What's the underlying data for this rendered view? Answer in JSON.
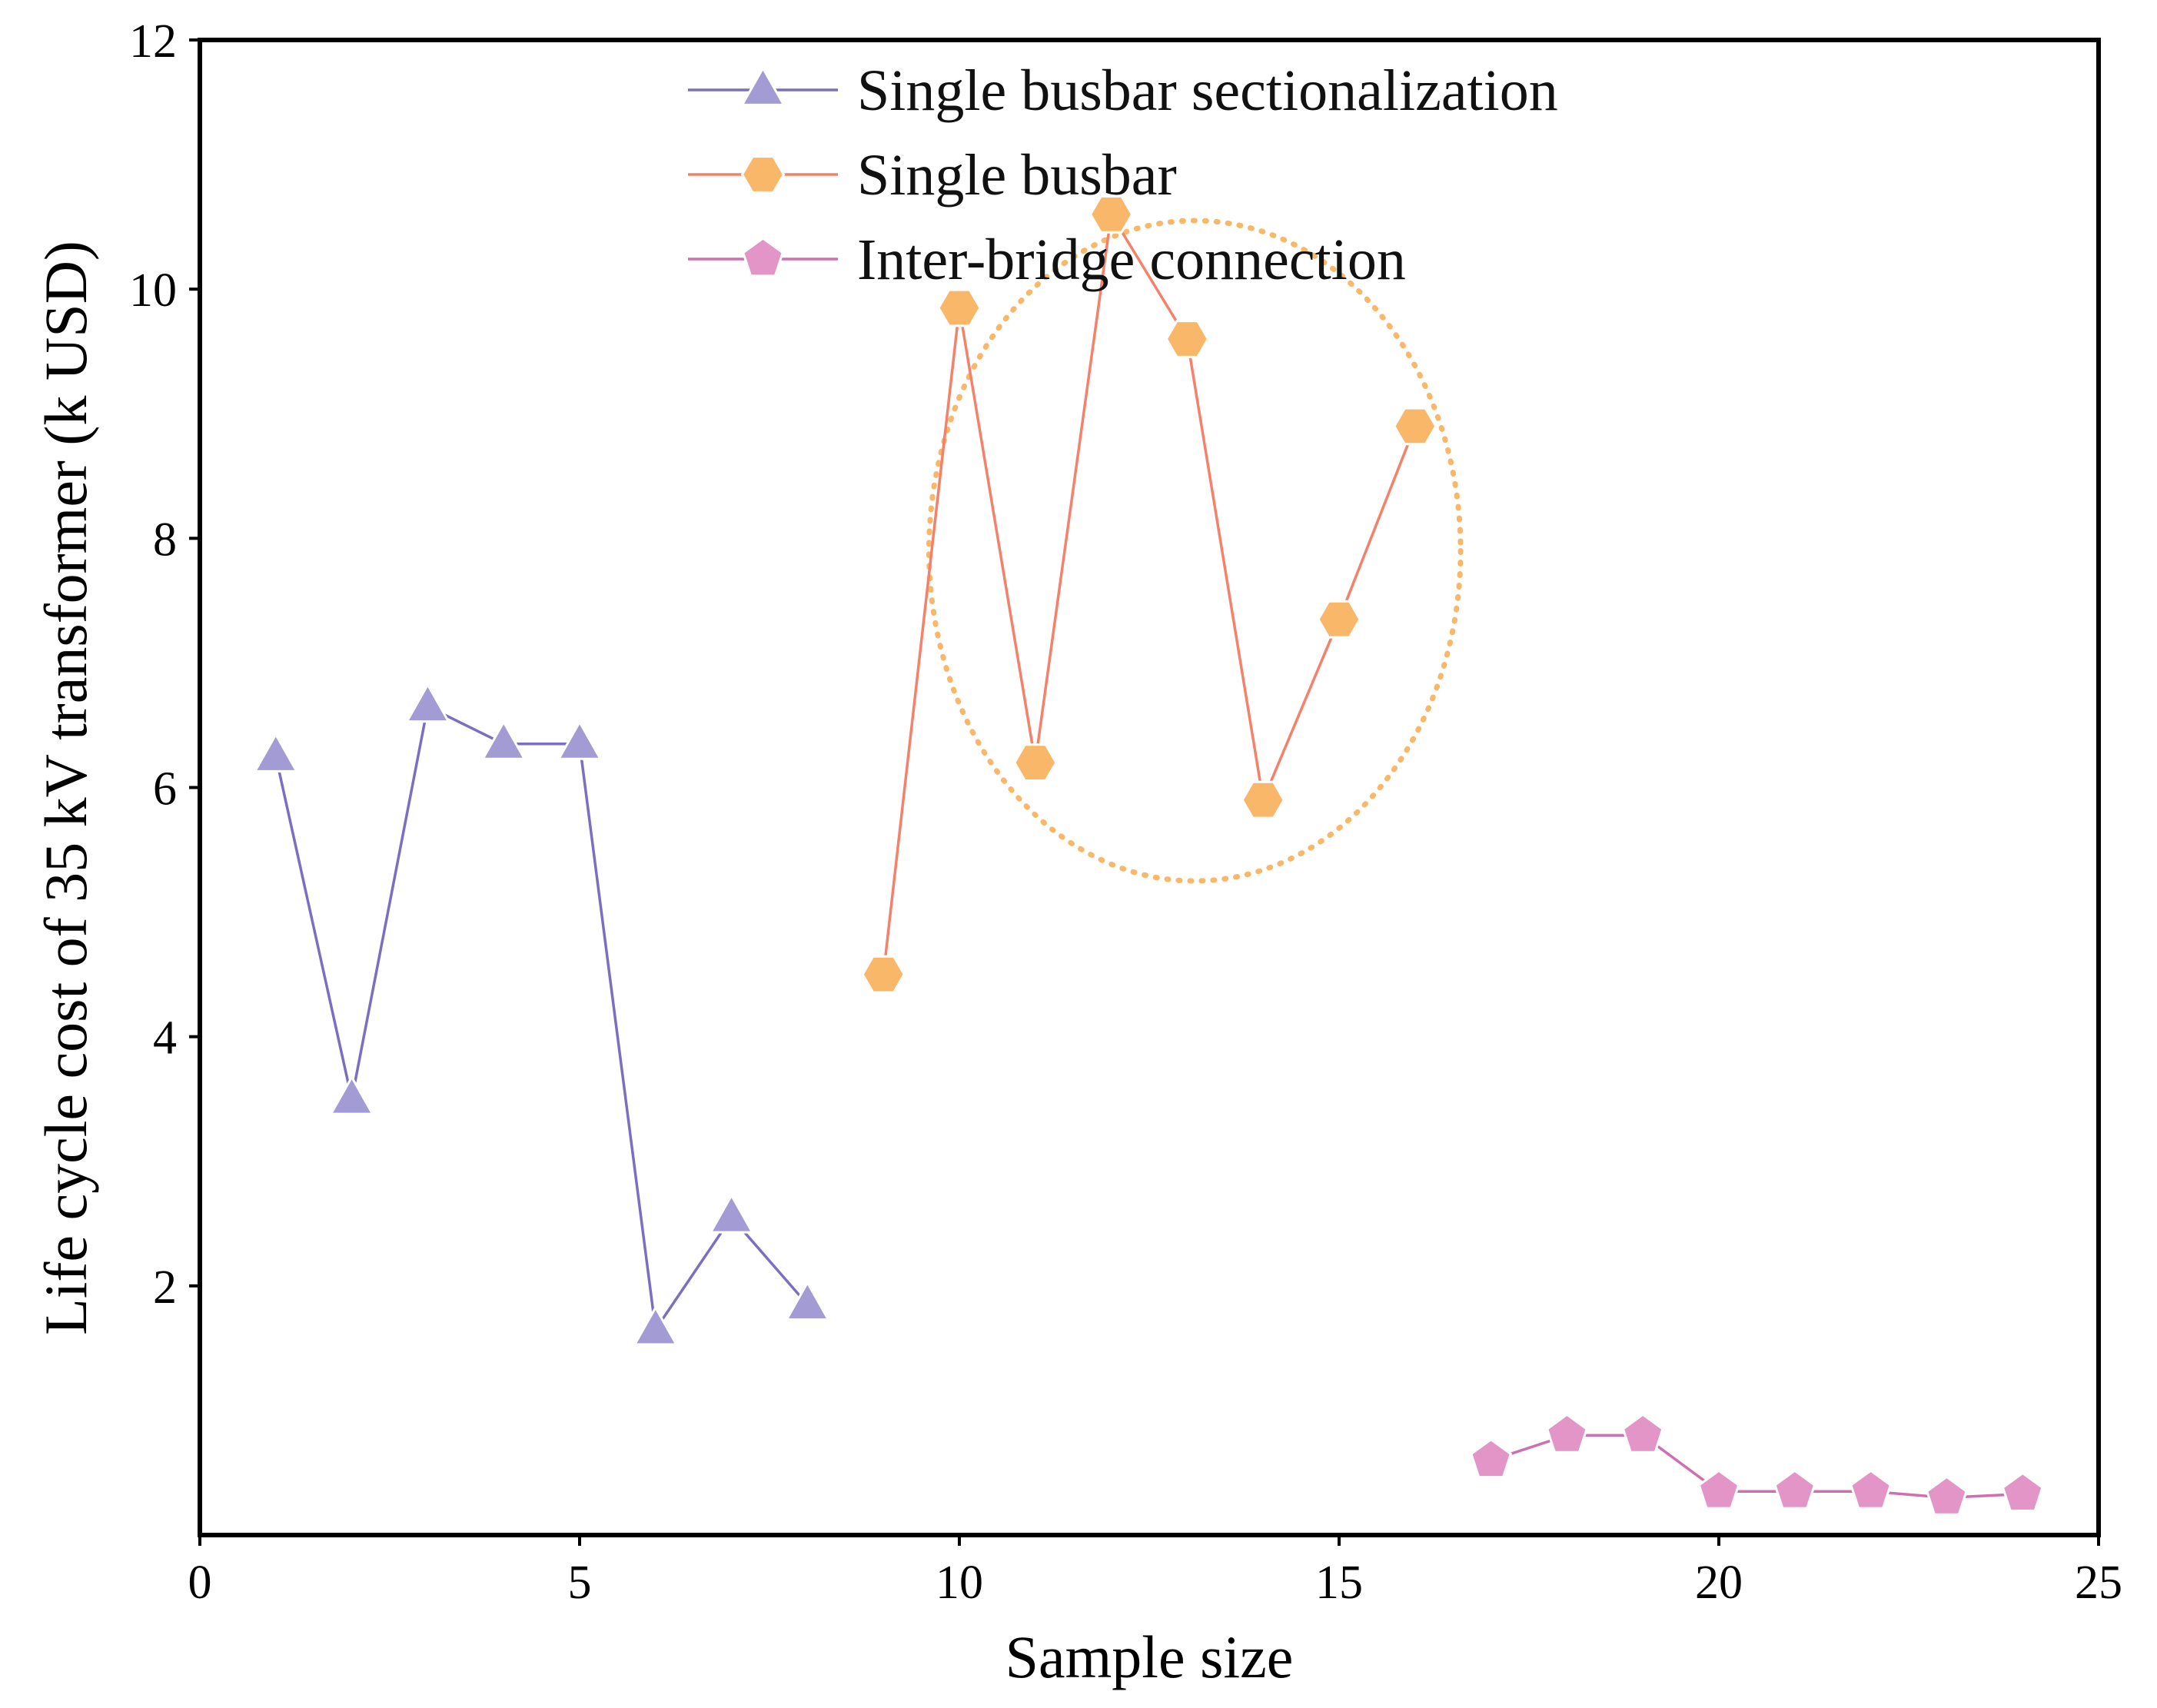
{
  "chart_data": {
    "type": "scatter",
    "title": "",
    "xlabel": "Sample size",
    "ylabel": "Life cycle cost of 35 kV transformer (k USD)",
    "xlim": [
      0,
      25
    ],
    "ylim": [
      0,
      12
    ],
    "x_ticks": [
      0,
      5,
      10,
      15,
      20,
      25
    ],
    "y_ticks": [
      2,
      4,
      6,
      8,
      10,
      12
    ],
    "grid": false,
    "legend_position": "top-center",
    "series": [
      {
        "name": "Single busbar sectionalization",
        "marker": "triangle",
        "color": "#a39bd3",
        "line_color": "#7a6fc0",
        "x": [
          1,
          2,
          3,
          4,
          5,
          6,
          7,
          8
        ],
        "values": [
          6.25,
          3.5,
          6.65,
          6.35,
          6.35,
          1.65,
          2.55,
          1.85
        ]
      },
      {
        "name": "Single busbar",
        "marker": "hexagon",
        "color": "#f9b76a",
        "line_color": "#f4826a",
        "x": [
          9,
          10,
          11,
          12,
          13,
          14,
          15,
          16
        ],
        "values": [
          4.5,
          9.85,
          6.2,
          10.6,
          9.6,
          5.9,
          7.35,
          8.9
        ]
      },
      {
        "name": "Inter-bridge connection",
        "marker": "pentagon",
        "color": "#e295c6",
        "line_color": "#cf6fae",
        "x": [
          17,
          18,
          19,
          20,
          21,
          22,
          23,
          24
        ],
        "values": [
          0.6,
          0.8,
          0.8,
          0.35,
          0.35,
          0.35,
          0.3,
          0.33
        ]
      }
    ],
    "annotation": {
      "shape": "dashed-ellipse",
      "color": "#f9b76a",
      "center_x": 13.1,
      "center_y": 7.9,
      "radius_x": 3.5,
      "radius_y": 2.65,
      "rotation_deg": 0
    }
  }
}
